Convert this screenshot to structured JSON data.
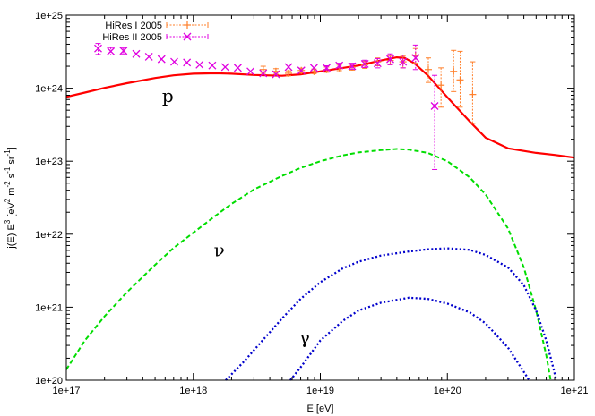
{
  "chart_data": {
    "type": "line",
    "title": "",
    "xlabel": "E [eV]",
    "ylabel": "j(E) E^3 [eV^2 m^-2 s^-1 sr^-1]",
    "xscale": "log",
    "yscale": "log",
    "xlim": [
      1e+17,
      1e+21
    ],
    "ylim": [
      1e+20,
      1e+25
    ],
    "x_ticks": [
      {
        "value": 1e+17,
        "label": "1e+17"
      },
      {
        "value": 1e+18,
        "label": "1e+18"
      },
      {
        "value": 1e+19,
        "label": "1e+19"
      },
      {
        "value": 1e+20,
        "label": "1e+20"
      },
      {
        "value": 1e+21,
        "label": "1e+21"
      }
    ],
    "y_ticks": [
      {
        "value": 1e+20,
        "label": "1e+20"
      },
      {
        "value": 1e+21,
        "label": "1e+21"
      },
      {
        "value": 1e+22,
        "label": "1e+22"
      },
      {
        "value": 1e+23,
        "label": "1e+23"
      },
      {
        "value": 1e+24,
        "label": "1e+24"
      },
      {
        "value": 1e+25,
        "label": "1e+25"
      }
    ],
    "grid": false,
    "legend": {
      "placement": "top-left",
      "entries": [
        {
          "label": "HiRes I 2005",
          "color": "#ff7f2a"
        },
        {
          "label": "HiRes II 2005",
          "color": "#e000e0"
        }
      ]
    },
    "annotations": [
      {
        "text": "p",
        "x": 6.3e+17,
        "y": 6.5e+23
      },
      {
        "text": "ν",
        "x": 1.6e+18,
        "y": 5e+21
      },
      {
        "text": "γ",
        "x": 7.5e+18,
        "y": 3.2e+20
      }
    ],
    "curves": [
      {
        "label": "p",
        "color": "#ff0000",
        "style": "solid",
        "width": 2.2,
        "points": [
          [
            1e+17,
            7.6e+23
          ],
          [
            1.4e+17,
            8.7e+23
          ],
          [
            2e+17,
            1.01e+24
          ],
          [
            3e+17,
            1.17e+24
          ],
          [
            5e+17,
            1.38e+24
          ],
          [
            7e+17,
            1.5e+24
          ],
          [
            1e+18,
            1.58e+24
          ],
          [
            1.5e+18,
            1.6e+24
          ],
          [
            2e+18,
            1.58e+24
          ],
          [
            3e+18,
            1.52e+24
          ],
          [
            5e+18,
            1.48e+24
          ],
          [
            7e+18,
            1.55e+24
          ],
          [
            1e+19,
            1.7e+24
          ],
          [
            1.5e+19,
            1.9e+24
          ],
          [
            2e+19,
            2.05e+24
          ],
          [
            3e+19,
            2.4e+24
          ],
          [
            4e+19,
            2.65e+24
          ],
          [
            4.6e+19,
            2.6e+24
          ],
          [
            5.5e+19,
            2.2e+24
          ],
          [
            7e+19,
            1.5e+24
          ],
          [
            1e+20,
            7.5e+23
          ],
          [
            1.5e+20,
            3.5e+23
          ],
          [
            2e+20,
            2.1e+23
          ],
          [
            3e+20,
            1.5e+23
          ],
          [
            5e+20,
            1.3e+23
          ],
          [
            7e+20,
            1.22e+23
          ],
          [
            1e+21,
            1.12e+23
          ]
        ]
      },
      {
        "label": "ν",
        "color": "#00dd00",
        "style": "dashed",
        "width": 2,
        "points": [
          [
            1e+17,
            1.4e+20
          ],
          [
            1.4e+17,
            3.5e+20
          ],
          [
            2e+17,
            7.5e+20
          ],
          [
            3e+17,
            1.6e+21
          ],
          [
            5e+17,
            3.8e+21
          ],
          [
            7e+17,
            6.5e+21
          ],
          [
            1e+18,
            1.05e+22
          ],
          [
            1.5e+18,
            1.8e+22
          ],
          [
            2e+18,
            2.6e+22
          ],
          [
            3e+18,
            4.1e+22
          ],
          [
            5e+18,
            6.3e+22
          ],
          [
            7e+18,
            8.1e+22
          ],
          [
            1e+19,
            1e+23
          ],
          [
            1.5e+19,
            1.2e+23
          ],
          [
            2e+19,
            1.32e+23
          ],
          [
            3e+19,
            1.42e+23
          ],
          [
            4e+19,
            1.47e+23
          ],
          [
            5e+19,
            1.44e+23
          ],
          [
            7e+19,
            1.3e+23
          ],
          [
            1e+20,
            1e+23
          ],
          [
            1.5e+20,
            6e+22
          ],
          [
            2e+20,
            3.5e+22
          ],
          [
            3e+20,
            1.2e+22
          ],
          [
            4e+20,
            3.5e+21
          ],
          [
            5e+20,
            9e+20
          ],
          [
            6e+20,
            2.2e+20
          ],
          [
            6.5e+20,
            1e+20
          ]
        ]
      },
      {
        "label": "γ (upper)",
        "color": "#0000cc",
        "style": "dotted",
        "width": 2.3,
        "points": [
          [
            1.8e+18,
            1e+20
          ],
          [
            2.5e+18,
            1.8e+20
          ],
          [
            3.5e+18,
            3.5e+20
          ],
          [
            5e+18,
            7e+20
          ],
          [
            7e+18,
            1.3e+21
          ],
          [
            1e+19,
            2.2e+21
          ],
          [
            1.5e+19,
            3.4e+21
          ],
          [
            2e+19,
            4.2e+21
          ],
          [
            3e+19,
            5.1e+21
          ],
          [
            5e+19,
            5.8e+21
          ],
          [
            7e+19,
            6.2e+21
          ],
          [
            1e+20,
            6.4e+21
          ],
          [
            1.5e+20,
            6.1e+21
          ],
          [
            2e+20,
            5.2e+21
          ],
          [
            3e+20,
            3.5e+21
          ],
          [
            4e+20,
            2e+21
          ],
          [
            5e+20,
            9e+20
          ],
          [
            6e+20,
            3.5e+20
          ],
          [
            6.8e+20,
            1.5e+20
          ],
          [
            7.2e+20,
            1e+20
          ]
        ]
      },
      {
        "label": "γ (lower)",
        "color": "#0000cc",
        "style": "dotted",
        "width": 2.3,
        "points": [
          [
            5.8e+18,
            1e+20
          ],
          [
            7e+18,
            1.5e+20
          ],
          [
            1e+19,
            3.5e+20
          ],
          [
            1.5e+19,
            6.5e+20
          ],
          [
            2e+19,
            9e+20
          ],
          [
            3e+19,
            1.15e+21
          ],
          [
            5e+19,
            1.35e+21
          ],
          [
            7e+19,
            1.3e+21
          ],
          [
            1e+20,
            1.12e+21
          ],
          [
            1.5e+20,
            8.5e+20
          ],
          [
            2e+20,
            6e+20
          ],
          [
            3e+20,
            2.8e+20
          ],
          [
            4e+20,
            1.3e+20
          ],
          [
            4.4e+20,
            1e+20
          ]
        ]
      }
    ],
    "series": [
      {
        "name": "HiRes I 2005",
        "color": "#ff7f2a",
        "marker": "plus",
        "points": [
          {
            "x": 3.55e+18,
            "y": 1.8e+24,
            "lo": 1.6e+24,
            "hi": 2e+24
          },
          {
            "x": 4.47e+18,
            "y": 1.7e+24,
            "lo": 1.55e+24,
            "hi": 1.85e+24
          },
          {
            "x": 5.62e+18,
            "y": 1.6e+24,
            "lo": 1.48e+24,
            "hi": 1.73e+24
          },
          {
            "x": 7.08e+18,
            "y": 1.75e+24,
            "lo": 1.62e+24,
            "hi": 1.88e+24
          },
          {
            "x": 8.91e+18,
            "y": 1.7e+24,
            "lo": 1.58e+24,
            "hi": 1.83e+24
          },
          {
            "x": 1.12e+19,
            "y": 1.8e+24,
            "lo": 1.65e+24,
            "hi": 1.95e+24
          },
          {
            "x": 1.41e+19,
            "y": 1.9e+24,
            "lo": 1.74e+24,
            "hi": 2.07e+24
          },
          {
            "x": 1.78e+19,
            "y": 1.95e+24,
            "lo": 1.77e+24,
            "hi": 2.15e+24
          },
          {
            "x": 2.24e+19,
            "y": 2.1e+24,
            "lo": 1.87e+24,
            "hi": 2.35e+24
          },
          {
            "x": 2.82e+19,
            "y": 2.3e+24,
            "lo": 2.03e+24,
            "hi": 2.6e+24
          },
          {
            "x": 3.55e+19,
            "y": 2.4e+24,
            "lo": 2.1e+24,
            "hi": 2.75e+24
          },
          {
            "x": 4.47e+19,
            "y": 2.3e+24,
            "lo": 1.9e+24,
            "hi": 2.75e+24
          },
          {
            "x": 5.62e+19,
            "y": 2.8e+24,
            "lo": 2.2e+24,
            "hi": 3.5e+24
          },
          {
            "x": 7.08e+19,
            "y": 1.8e+24,
            "lo": 1.2e+24,
            "hi": 2.6e+24
          },
          {
            "x": 8.91e+19,
            "y": 1.1e+24,
            "lo": 5.5e+23,
            "hi": 1.9e+24
          },
          {
            "x": 1.12e+20,
            "y": 1.7e+24,
            "lo": 9e+23,
            "hi": 3.3e+24
          },
          {
            "x": 1.26e+20,
            "y": 1.3e+24,
            "lo": 5.5e+23,
            "hi": 3.2e+24
          },
          {
            "x": 1.58e+20,
            "y": 8.2e+23,
            "lo": 3.3e+23,
            "hi": 2.3e+24
          }
        ]
      },
      {
        "name": "HiRes II 2005",
        "color": "#e000e0",
        "marker": "x",
        "points": [
          {
            "x": 1.78e+17,
            "y": 3.5e+24,
            "lo": 2.9e+24,
            "hi": 4.1e+24
          },
          {
            "x": 2.24e+17,
            "y": 3.2e+24,
            "lo": 2.85e+24,
            "hi": 3.6e+24
          },
          {
            "x": 2.82e+17,
            "y": 3.25e+24,
            "lo": 2.95e+24,
            "hi": 3.55e+24
          },
          {
            "x": 3.55e+17,
            "y": 2.95e+24
          },
          {
            "x": 4.47e+17,
            "y": 2.7e+24
          },
          {
            "x": 5.62e+17,
            "y": 2.5e+24
          },
          {
            "x": 7.08e+17,
            "y": 2.3e+24
          },
          {
            "x": 8.91e+17,
            "y": 2.25e+24
          },
          {
            "x": 1.12e+18,
            "y": 2.1e+24
          },
          {
            "x": 1.41e+18,
            "y": 2.05e+24
          },
          {
            "x": 1.78e+18,
            "y": 1.95e+24
          },
          {
            "x": 2.24e+18,
            "y": 1.9e+24
          },
          {
            "x": 2.82e+18,
            "y": 1.7e+24
          },
          {
            "x": 3.55e+18,
            "y": 1.6e+24
          },
          {
            "x": 4.47e+18,
            "y": 1.55e+24
          },
          {
            "x": 5.62e+18,
            "y": 1.95e+24
          },
          {
            "x": 7.08e+18,
            "y": 1.75e+24
          },
          {
            "x": 8.91e+18,
            "y": 1.9e+24
          },
          {
            "x": 1.12e+19,
            "y": 1.9e+24,
            "lo": 1.78e+24,
            "hi": 2.03e+24
          },
          {
            "x": 1.41e+19,
            "y": 2.05e+24,
            "lo": 1.9e+24,
            "hi": 2.2e+24
          },
          {
            "x": 1.78e+19,
            "y": 2e+24,
            "lo": 1.82e+24,
            "hi": 2.2e+24
          },
          {
            "x": 2.24e+19,
            "y": 2.15e+24,
            "lo": 1.92e+24,
            "hi": 2.42e+24
          },
          {
            "x": 2.82e+19,
            "y": 2.2e+24,
            "lo": 1.9e+24,
            "hi": 2.55e+24
          },
          {
            "x": 3.55e+19,
            "y": 2.5e+24,
            "lo": 2.1e+24,
            "hi": 2.95e+24
          },
          {
            "x": 4.47e+19,
            "y": 2.3e+24,
            "lo": 1.9e+24,
            "hi": 2.85e+24
          },
          {
            "x": 5.62e+19,
            "y": 2.6e+24,
            "lo": 1.8e+24,
            "hi": 3.9e+24
          },
          {
            "x": 7.94e+19,
            "y": 5.7e+23,
            "lo": 7.7e+22,
            "hi": 1.5e+24
          }
        ]
      }
    ]
  }
}
